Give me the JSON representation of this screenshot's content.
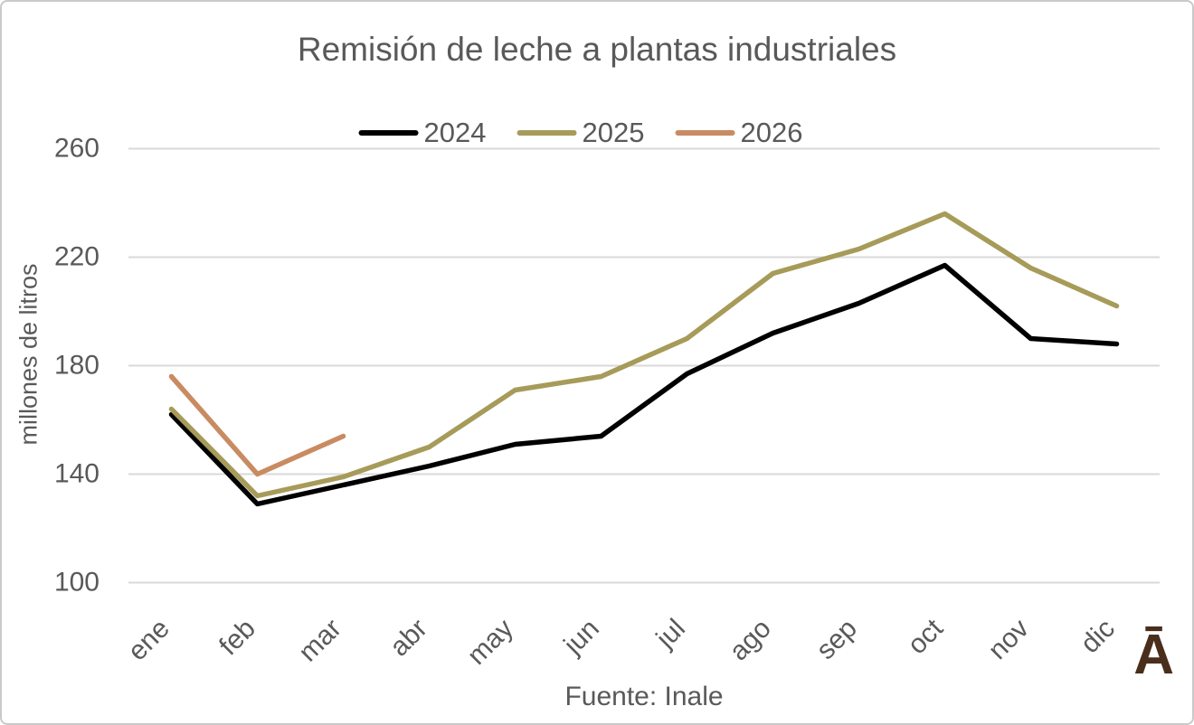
{
  "chart_data": {
    "type": "line",
    "title": "Remisión de leche a plantas industriales",
    "ylabel": "millones de litros",
    "xlabel": "",
    "categories": [
      "ene",
      "feb",
      "mar",
      "abr",
      "may",
      "jun",
      "jul",
      "ago",
      "sep",
      "oct",
      "nov",
      "dic"
    ],
    "series": [
      {
        "name": "2024",
        "color": "#000000",
        "values": [
          162,
          129,
          136,
          143,
          151,
          154,
          177,
          192,
          203,
          217,
          190,
          188
        ]
      },
      {
        "name": "2025",
        "color": "#a69b59",
        "values": [
          164,
          132,
          139,
          150,
          171,
          176,
          190,
          214,
          223,
          236,
          216,
          202
        ]
      },
      {
        "name": "2026",
        "color": "#c98b61",
        "values": [
          176,
          140,
          154,
          null,
          null,
          null,
          null,
          null,
          null,
          null,
          null,
          null
        ]
      }
    ],
    "ylim": [
      100,
      260
    ],
    "yticks": [
      260,
      220,
      180,
      140,
      100
    ],
    "grid": "horizontal",
    "legend_position": "top-center"
  },
  "source_note": "Fuente: Inale",
  "branding": {
    "logo_glyph": "Ā"
  },
  "colors": {
    "text": "#595959",
    "gridline": "#d9d9d9",
    "card_border": "#c9c9c9",
    "logo_brown": "#4a2e1c",
    "series_2024": "#000000",
    "series_2025": "#a69b59",
    "series_2026": "#c98b61"
  }
}
